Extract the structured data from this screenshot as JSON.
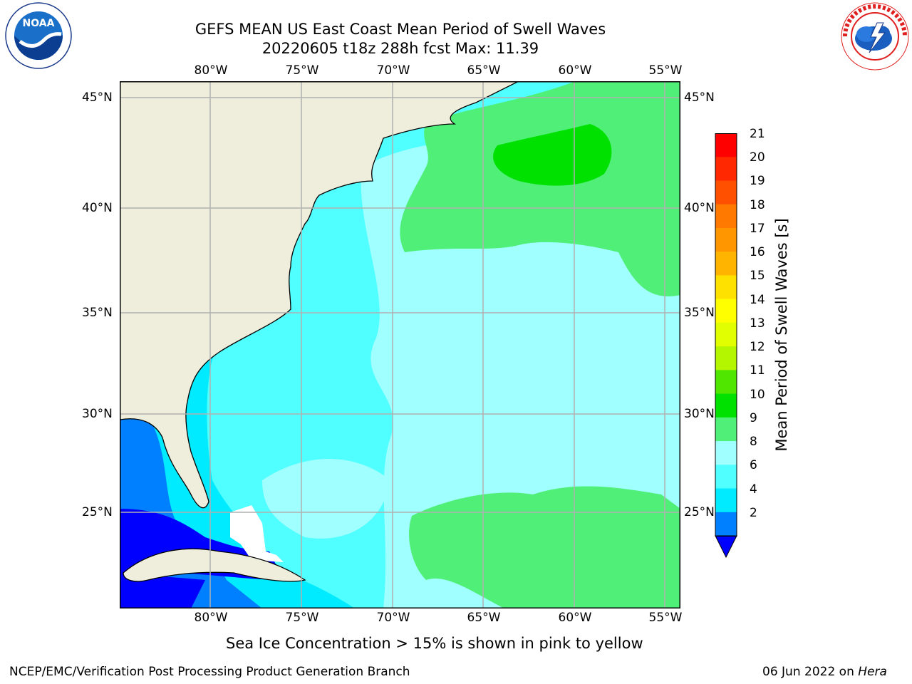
{
  "title": {
    "line1": "GEFS MEAN US East Coast Mean Period of Swell Waves",
    "line2": "20220605 t18z 288h fcst   Max: 11.39"
  },
  "axes": {
    "lon_labels": [
      "80°W",
      "75°W",
      "70°W",
      "65°W",
      "60°W",
      "55°W"
    ],
    "lat_labels": [
      "45°N",
      "40°N",
      "35°N",
      "30°N",
      "25°N"
    ],
    "lon_range": [
      -85,
      -54
    ],
    "lat_range": [
      20.5,
      46
    ]
  },
  "colorbar": {
    "label": "Mean Period of Swell Waves [s]",
    "ticks": [
      "21",
      "20",
      "19",
      "18",
      "17",
      "16",
      "15",
      "14",
      "13",
      "12",
      "11",
      "10",
      "9",
      "8",
      "6",
      "4",
      "2"
    ],
    "colors": [
      "#ff0000",
      "#ff2800",
      "#ff5000",
      "#ff7800",
      "#ff9600",
      "#ffb400",
      "#ffe100",
      "#ffff00",
      "#e1ff00",
      "#b4f500",
      "#50e600",
      "#00e100",
      "#50f078",
      "#a0ffff",
      "#50ffff",
      "#00ebff",
      "#0080ff",
      "#0000ff"
    ]
  },
  "map_colors": {
    "land": "#efeedc",
    "ocean_6_8": "#50ffff",
    "ocean_8_9": "#a0ffff",
    "ocean_9_10": "#50f078",
    "ocean_10_11": "#00e100",
    "ocean_4_6": "#00ebff",
    "ocean_2_4": "#0080ff",
    "ocean_lt2": "#0000ff",
    "no_data": "#ffffff",
    "grid": "#b0b0b0"
  },
  "logos": {
    "noaa": "NOAA",
    "noaa_ring": "NATIONAL OCEANIC AND ATMOSPHERIC ADMINISTRATION · U.S. DEPARTMENT OF COMMERCE",
    "nws_ring": "NATIONAL WEATHER SERVICE"
  },
  "note": "Sea Ice Concentration > 15% is shown in pink to yellow",
  "footer": {
    "left": "NCEP/EMC/Verification Post Processing Product Generation Branch",
    "date": "06 Jun 2022 on ",
    "machine": "Hera"
  }
}
